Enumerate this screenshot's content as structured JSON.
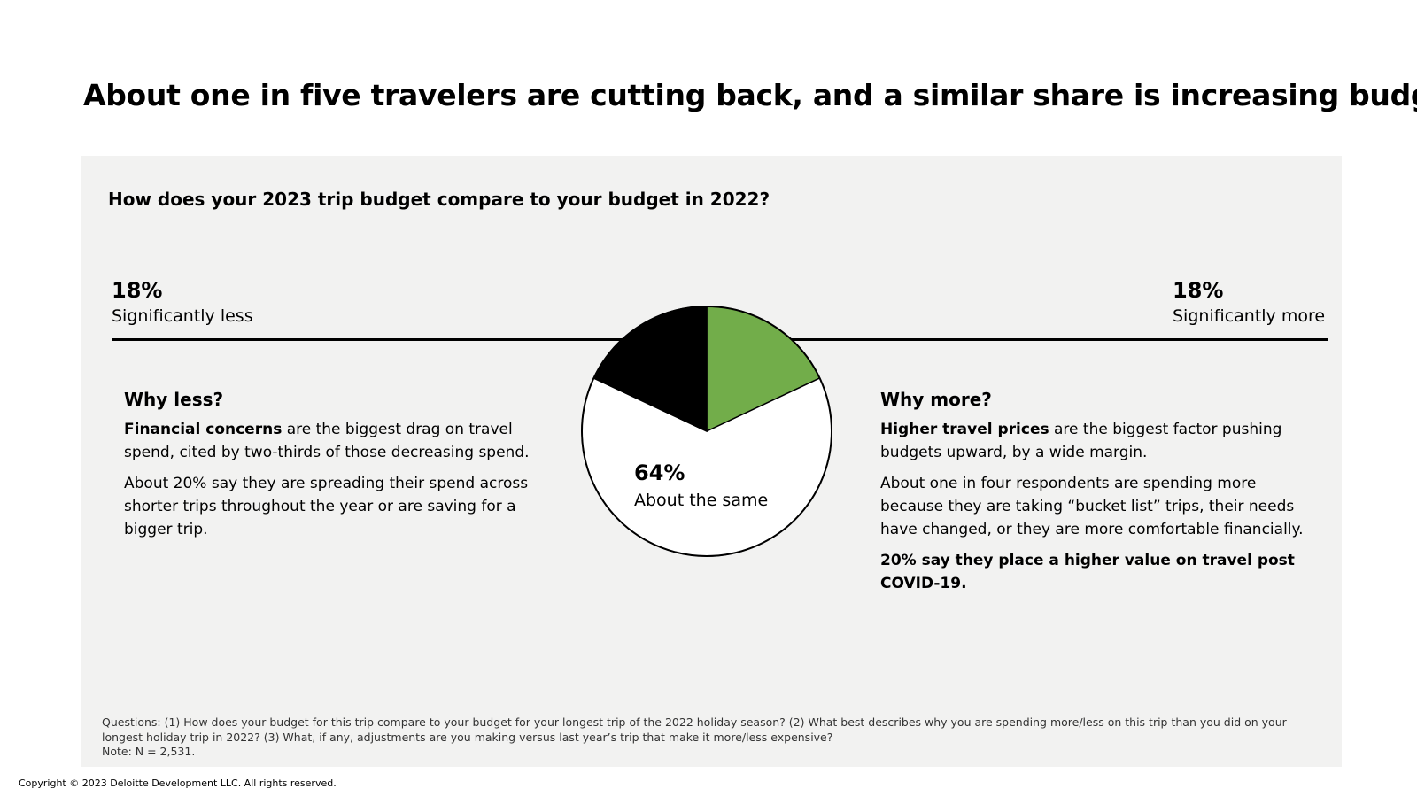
{
  "title": "About one in five travelers are cutting back, and a similar share is increasing budgets",
  "question": "How does your 2023 trip budget compare to your budget in 2022?",
  "chart_data": {
    "type": "pie",
    "title": "How does your 2023 trip budget compare to your budget in 2022?",
    "slices": [
      {
        "label": "Significantly more",
        "value": 18,
        "display": "18%",
        "color": "#72ad4a"
      },
      {
        "label": "About the same",
        "value": 64,
        "display": "64%",
        "color": "#ffffff"
      },
      {
        "label": "Significantly less",
        "value": 18,
        "display": "18%",
        "color": "#000000"
      }
    ]
  },
  "left": {
    "pct": "18%",
    "label": "Significantly less",
    "heading": "Why less?",
    "p1_bold": "Financial concerns",
    "p1_rest": " are the biggest drag on travel spend, cited by two-thirds of those decreasing spend.",
    "p2": "About 20% say they are spreading their spend across shorter trips throughout the year or are saving for a bigger trip."
  },
  "center": {
    "pct": "64%",
    "label": "About the same"
  },
  "right": {
    "pct": "18%",
    "label": "Significantly more",
    "heading": "Why more?",
    "p1_bold": "Higher travel prices",
    "p1_rest": " are the biggest factor pushing budgets upward, by a wide margin.",
    "p2": "About one in four respondents are spending more because they are taking “bucket list” trips, their needs have changed, or they are more comfortable financially.",
    "p3": "20% say they place a higher value on travel post COVID-19."
  },
  "footnote": {
    "questions": "Questions: (1) How does your budget for this trip compare to your budget for your longest trip of the 2022 holiday season? (2) What best describes why you are spending more/less on this trip than you did on your longest holiday trip in 2022? (3) What, if any, adjustments are you making versus last year’s trip that make it more/less expensive?",
    "note": "Note: N = 2,531."
  },
  "copyright": "Copyright © 2023 Deloitte Development LLC. All rights reserved."
}
